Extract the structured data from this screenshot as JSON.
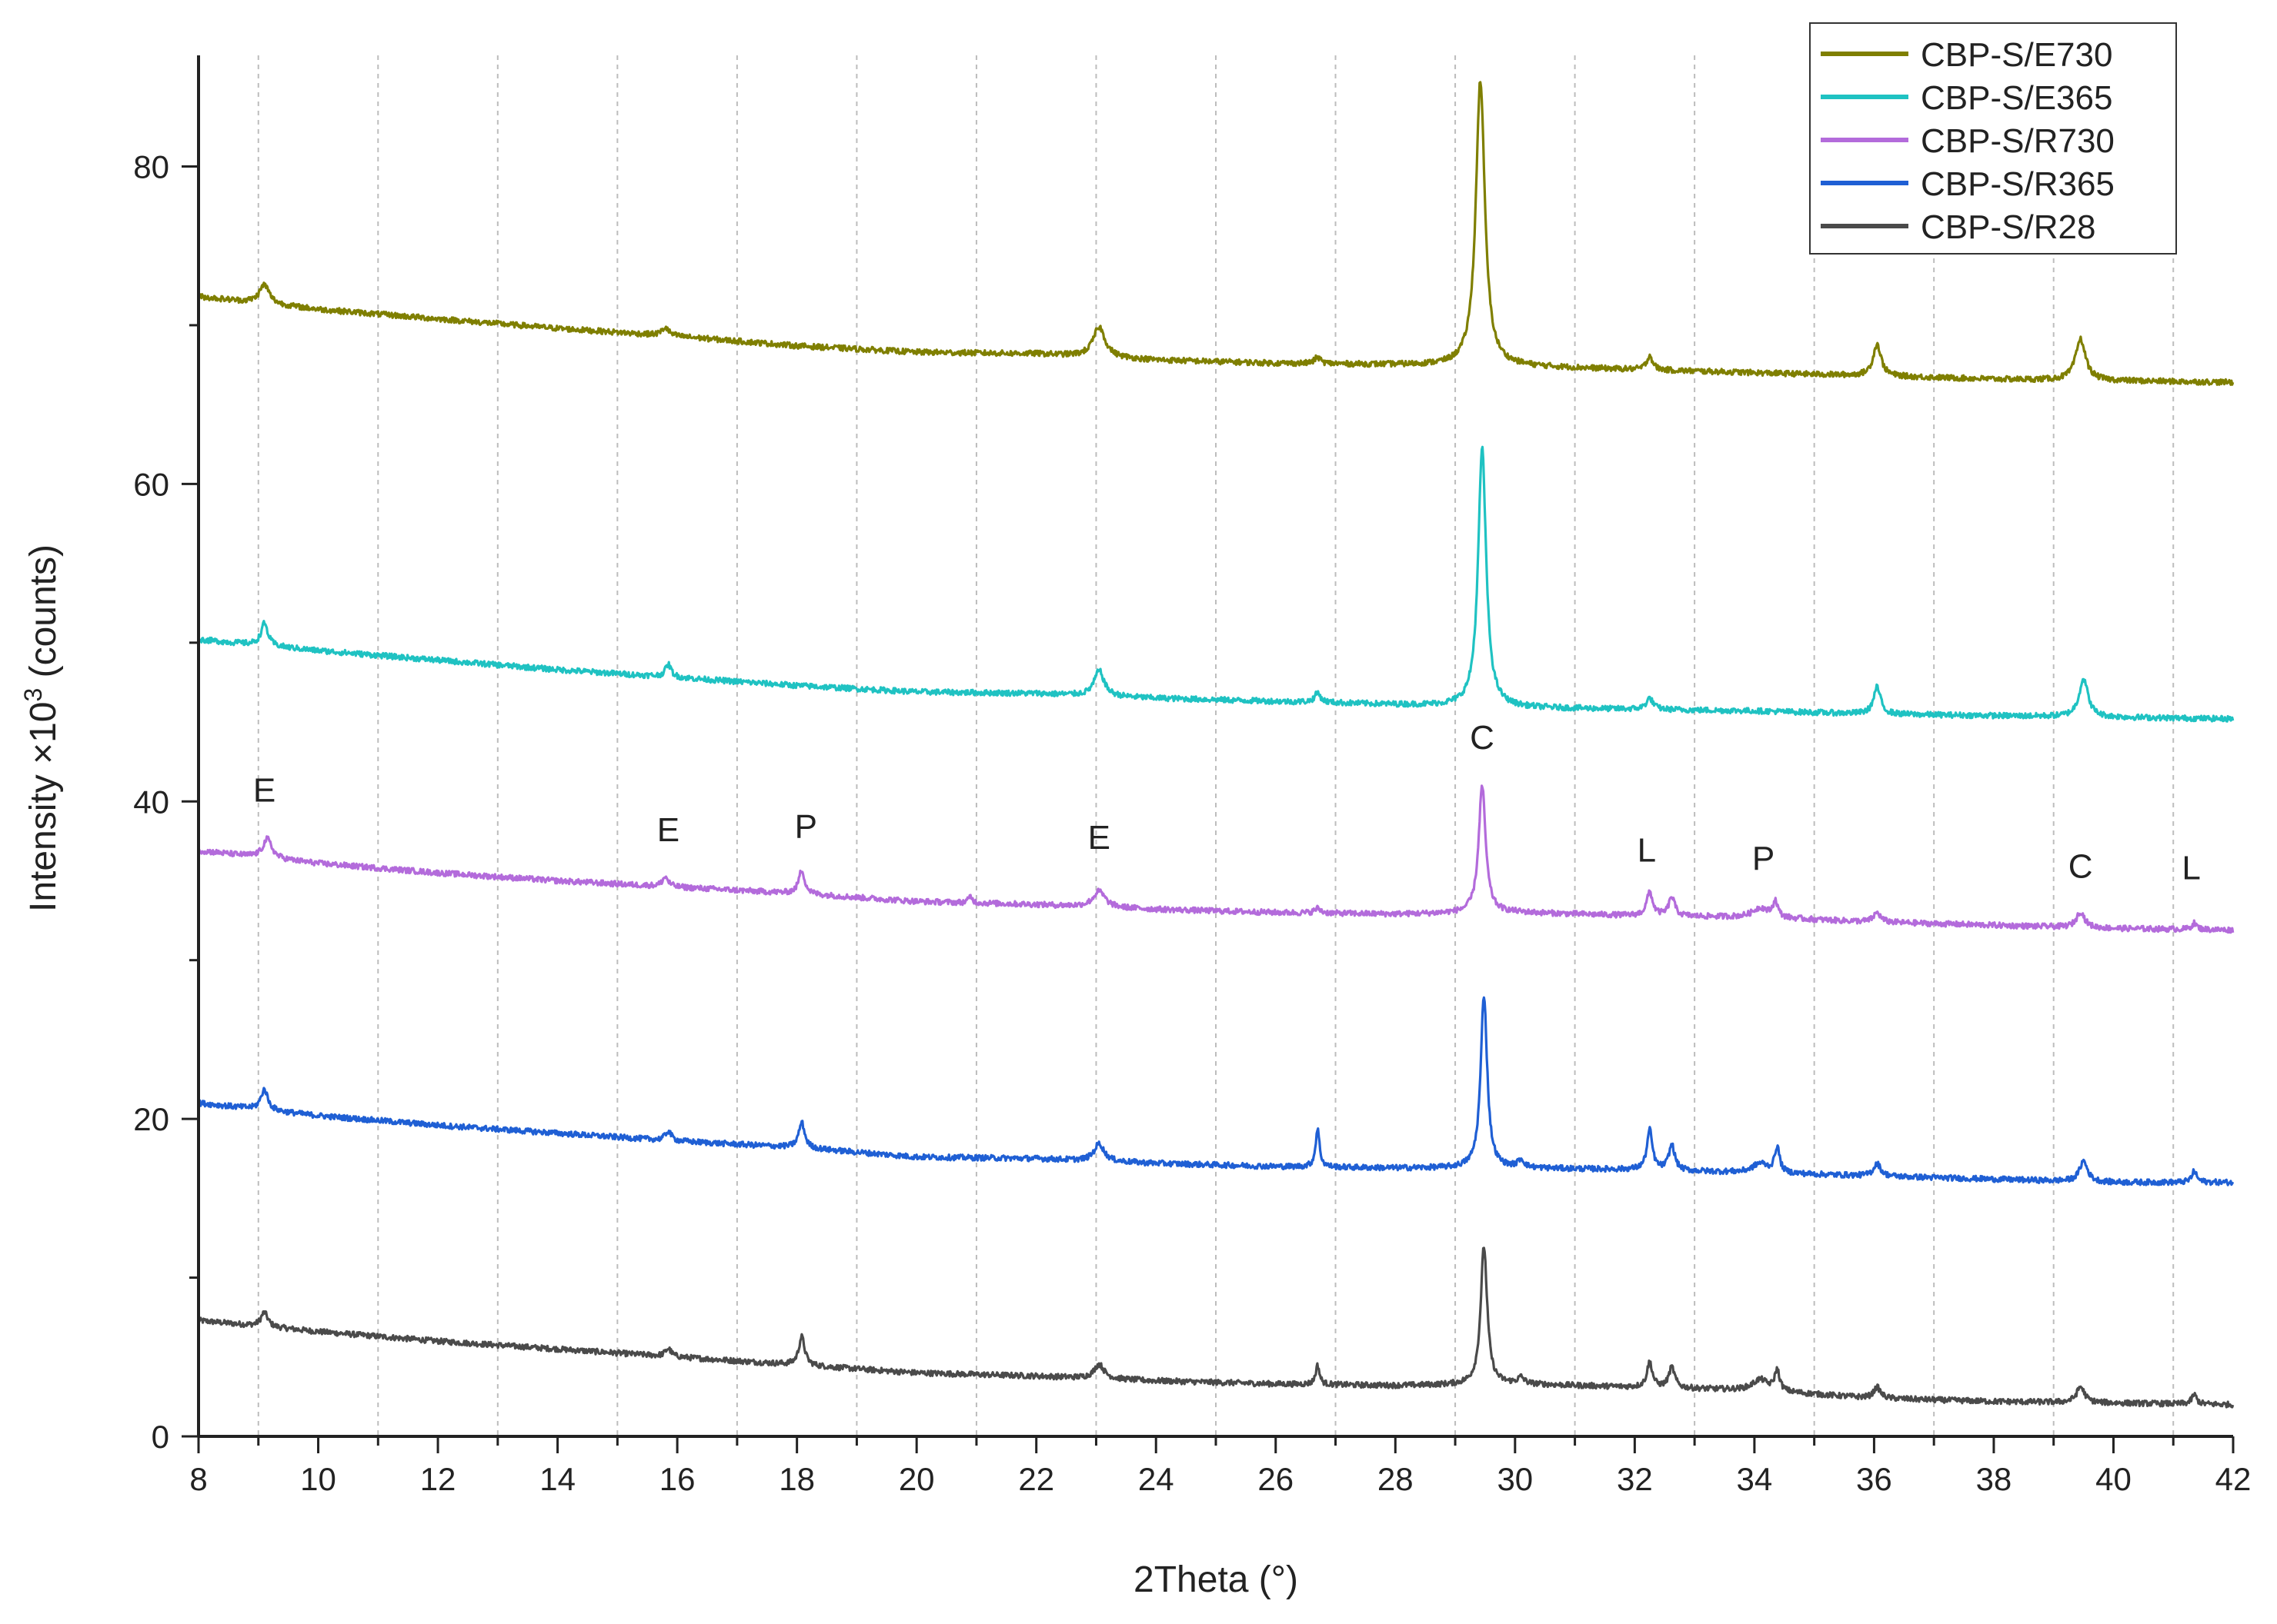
{
  "chart_data": {
    "type": "line",
    "title": "",
    "xlabel": "2Theta (°)",
    "ylabel": "Intensity ×10^3 (counts)",
    "ylabel_main": "Intensity ×10",
    "ylabel_sup": "3",
    "ylabel_tail": " (counts)",
    "xlim": [
      8,
      42
    ],
    "ylim": [
      0,
      87
    ],
    "xticks": [
      8,
      10,
      12,
      14,
      16,
      18,
      20,
      22,
      24,
      26,
      28,
      30,
      32,
      34,
      36,
      38,
      40,
      42
    ],
    "yticks": [
      0,
      20,
      40,
      60,
      80
    ],
    "grid": "vertical dashed at odd x",
    "legend_position": "top-right",
    "series": [
      {
        "name": "CBP-S/E730",
        "color": "#7f7f00",
        "baseline": [
          [
            8,
            71.8
          ],
          [
            10,
            71.0
          ],
          [
            12,
            70.4
          ],
          [
            14,
            69.8
          ],
          [
            16,
            69.3
          ],
          [
            18,
            68.7
          ],
          [
            20,
            68.3
          ],
          [
            22,
            68.2
          ],
          [
            24,
            67.8
          ],
          [
            26,
            67.6
          ],
          [
            28,
            67.5
          ],
          [
            30,
            67.4
          ],
          [
            32,
            67.2
          ],
          [
            34,
            67.0
          ],
          [
            36,
            66.8
          ],
          [
            38,
            66.6
          ],
          [
            40,
            66.5
          ],
          [
            42,
            66.4
          ]
        ],
        "peaks": [
          {
            "x": 9.1,
            "h": 1.2,
            "w": 0.1
          },
          {
            "x": 15.8,
            "h": 0.5,
            "w": 0.07
          },
          {
            "x": 23.05,
            "h": 1.9,
            "w": 0.12
          },
          {
            "x": 26.7,
            "h": 0.4,
            "w": 0.06
          },
          {
            "x": 29.42,
            "h": 18.0,
            "w": 0.09
          },
          {
            "x": 32.25,
            "h": 0.9,
            "w": 0.06
          },
          {
            "x": 36.05,
            "h": 2.0,
            "w": 0.08
          },
          {
            "x": 39.45,
            "h": 2.6,
            "w": 0.1
          }
        ]
      },
      {
        "name": "CBP-S/E365",
        "color": "#1fc2c2",
        "baseline": [
          [
            8,
            50.2
          ],
          [
            10,
            49.5
          ],
          [
            12,
            48.9
          ],
          [
            14,
            48.3
          ],
          [
            16,
            47.8
          ],
          [
            18,
            47.3
          ],
          [
            20,
            46.9
          ],
          [
            22,
            46.8
          ],
          [
            24,
            46.5
          ],
          [
            26,
            46.3
          ],
          [
            28,
            46.1
          ],
          [
            30,
            45.9
          ],
          [
            32,
            45.8
          ],
          [
            34,
            45.7
          ],
          [
            36,
            45.5
          ],
          [
            38,
            45.4
          ],
          [
            40,
            45.3
          ],
          [
            42,
            45.2
          ]
        ],
        "peaks": [
          {
            "x": 9.1,
            "h": 1.4,
            "w": 0.07
          },
          {
            "x": 15.85,
            "h": 0.8,
            "w": 0.06
          },
          {
            "x": 23.05,
            "h": 1.6,
            "w": 0.1
          },
          {
            "x": 26.7,
            "h": 0.6,
            "w": 0.06
          },
          {
            "x": 29.45,
            "h": 16.3,
            "w": 0.08
          },
          {
            "x": 32.25,
            "h": 0.7,
            "w": 0.07
          },
          {
            "x": 36.05,
            "h": 1.7,
            "w": 0.07
          },
          {
            "x": 39.5,
            "h": 2.4,
            "w": 0.09
          }
        ]
      },
      {
        "name": "CBP-S/R730",
        "color": "#b36bdb",
        "baseline": [
          [
            8,
            36.9
          ],
          [
            10,
            36.1
          ],
          [
            12,
            35.5
          ],
          [
            14,
            35.0
          ],
          [
            16,
            34.6
          ],
          [
            18,
            34.2
          ],
          [
            20,
            33.7
          ],
          [
            22,
            33.5
          ],
          [
            24,
            33.2
          ],
          [
            26,
            33.0
          ],
          [
            28,
            32.9
          ],
          [
            30,
            33.0
          ],
          [
            32,
            32.8
          ],
          [
            34,
            32.7
          ],
          [
            36,
            32.4
          ],
          [
            38,
            32.2
          ],
          [
            40,
            32.0
          ],
          [
            42,
            31.9
          ]
        ],
        "peaks": [
          {
            "x": 9.15,
            "h": 1.2,
            "w": 0.09
          },
          {
            "x": 15.8,
            "h": 0.6,
            "w": 0.06
          },
          {
            "x": 18.08,
            "h": 1.5,
            "w": 0.06
          },
          {
            "x": 20.9,
            "h": 0.4,
            "w": 0.04
          },
          {
            "x": 23.05,
            "h": 1.0,
            "w": 0.12
          },
          {
            "x": 26.7,
            "h": 0.3,
            "w": 0.06
          },
          {
            "x": 29.45,
            "h": 8.0,
            "w": 0.07
          },
          {
            "x": 32.25,
            "h": 1.5,
            "w": 0.06
          },
          {
            "x": 32.62,
            "h": 1.2,
            "w": 0.06
          },
          {
            "x": 34.1,
            "h": 0.6,
            "w": 0.15
          },
          {
            "x": 34.35,
            "h": 1.0,
            "w": 0.05
          },
          {
            "x": 36.05,
            "h": 0.6,
            "w": 0.07
          },
          {
            "x": 39.45,
            "h": 1.0,
            "w": 0.08
          },
          {
            "x": 41.35,
            "h": 0.4,
            "w": 0.05
          }
        ]
      },
      {
        "name": "CBP-S/R365",
        "color": "#1f5fd4",
        "baseline": [
          [
            8,
            21.0
          ],
          [
            10,
            20.2
          ],
          [
            12,
            19.6
          ],
          [
            14,
            19.1
          ],
          [
            16,
            18.6
          ],
          [
            18,
            18.2
          ],
          [
            20,
            17.6
          ],
          [
            22,
            17.5
          ],
          [
            24,
            17.2
          ],
          [
            26,
            17.0
          ],
          [
            28,
            16.9
          ],
          [
            30,
            16.9
          ],
          [
            32,
            16.8
          ],
          [
            34,
            16.6
          ],
          [
            36,
            16.4
          ],
          [
            38,
            16.2
          ],
          [
            40,
            16.0
          ],
          [
            42,
            16.0
          ]
        ],
        "peaks": [
          {
            "x": 9.1,
            "h": 1.3,
            "w": 0.07
          },
          {
            "x": 15.85,
            "h": 0.6,
            "w": 0.06
          },
          {
            "x": 18.08,
            "h": 1.6,
            "w": 0.06
          },
          {
            "x": 23.05,
            "h": 1.1,
            "w": 0.1
          },
          {
            "x": 26.7,
            "h": 2.4,
            "w": 0.04
          },
          {
            "x": 29.48,
            "h": 10.9,
            "w": 0.065
          },
          {
            "x": 30.1,
            "h": 0.5,
            "w": 0.06
          },
          {
            "x": 32.25,
            "h": 2.5,
            "w": 0.055
          },
          {
            "x": 32.62,
            "h": 1.6,
            "w": 0.06
          },
          {
            "x": 34.1,
            "h": 0.6,
            "w": 0.15
          },
          {
            "x": 34.38,
            "h": 1.6,
            "w": 0.05
          },
          {
            "x": 36.05,
            "h": 0.8,
            "w": 0.07
          },
          {
            "x": 39.5,
            "h": 1.3,
            "w": 0.08
          },
          {
            "x": 41.35,
            "h": 0.7,
            "w": 0.05
          }
        ]
      },
      {
        "name": "CBP-S/R28",
        "color": "#4a4a4a",
        "baseline": [
          [
            8,
            7.3
          ],
          [
            10,
            6.6
          ],
          [
            12,
            6.0
          ],
          [
            14,
            5.5
          ],
          [
            16,
            5.0
          ],
          [
            18,
            4.5
          ],
          [
            20,
            4.0
          ],
          [
            22,
            3.8
          ],
          [
            24,
            3.5
          ],
          [
            26,
            3.3
          ],
          [
            28,
            3.2
          ],
          [
            30,
            3.3
          ],
          [
            32,
            3.1
          ],
          [
            34,
            2.9
          ],
          [
            36,
            2.4
          ],
          [
            38,
            2.2
          ],
          [
            40,
            2.1
          ],
          [
            42,
            2.0
          ]
        ],
        "peaks": [
          {
            "x": 9.1,
            "h": 0.9,
            "w": 0.07
          },
          {
            "x": 15.85,
            "h": 0.5,
            "w": 0.06
          },
          {
            "x": 18.08,
            "h": 1.8,
            "w": 0.06
          },
          {
            "x": 23.05,
            "h": 0.9,
            "w": 0.1
          },
          {
            "x": 26.7,
            "h": 1.2,
            "w": 0.04
          },
          {
            "x": 29.48,
            "h": 8.7,
            "w": 0.065
          },
          {
            "x": 30.1,
            "h": 0.4,
            "w": 0.06
          },
          {
            "x": 32.25,
            "h": 1.6,
            "w": 0.055
          },
          {
            "x": 32.62,
            "h": 1.3,
            "w": 0.06
          },
          {
            "x": 34.1,
            "h": 0.7,
            "w": 0.15
          },
          {
            "x": 34.38,
            "h": 1.3,
            "w": 0.05
          },
          {
            "x": 36.05,
            "h": 0.7,
            "w": 0.07
          },
          {
            "x": 39.45,
            "h": 1.0,
            "w": 0.08
          },
          {
            "x": 41.35,
            "h": 0.6,
            "w": 0.05
          }
        ]
      }
    ],
    "annotations": [
      {
        "text": "E",
        "x": 9.1,
        "y": 40.0
      },
      {
        "text": "E",
        "x": 15.85,
        "y": 37.5
      },
      {
        "text": "P",
        "x": 18.15,
        "y": 37.7
      },
      {
        "text": "E",
        "x": 23.05,
        "y": 37.0
      },
      {
        "text": "C",
        "x": 29.45,
        "y": 43.3
      },
      {
        "text": "L",
        "x": 32.2,
        "y": 36.2
      },
      {
        "text": "P",
        "x": 34.15,
        "y": 35.7
      },
      {
        "text": "C",
        "x": 39.45,
        "y": 35.2
      },
      {
        "text": "L",
        "x": 41.3,
        "y": 35.1
      }
    ]
  }
}
